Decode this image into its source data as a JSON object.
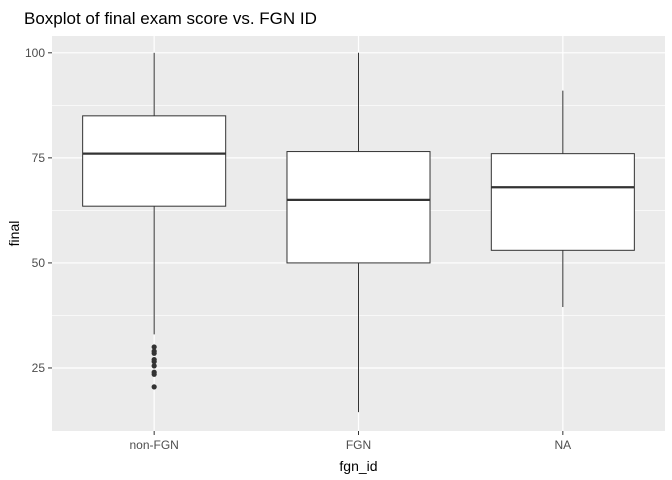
{
  "chart_data": {
    "type": "boxplot",
    "title": "Boxplot of final exam score vs. FGN ID",
    "xlabel": "fgn_id",
    "ylabel": "final",
    "ylim": [
      10,
      104
    ],
    "y_ticks": [
      25,
      50,
      75,
      100
    ],
    "grid": true,
    "legend": "none",
    "categories": [
      "non-FGN",
      "FGN",
      "NA"
    ],
    "boxes": [
      {
        "category": "non-FGN",
        "whisker_low": 33,
        "q1": 63.5,
        "median": 76,
        "q3": 85,
        "whisker_high": 100,
        "outliers": [
          20.5,
          23.5,
          24,
          25.5,
          26.5,
          27,
          28.5,
          29,
          30
        ]
      },
      {
        "category": "FGN",
        "whisker_low": 14.5,
        "q1": 50,
        "median": 65,
        "q3": 76.5,
        "whisker_high": 100,
        "outliers": []
      },
      {
        "category": "NA",
        "whisker_low": 39.5,
        "q1": 53,
        "median": 68,
        "q3": 76,
        "whisker_high": 91,
        "outliers": []
      }
    ],
    "colors": {
      "panel": "#ebebeb",
      "grid": "#ffffff",
      "box_fill": "#ffffff",
      "box_line": "#333333",
      "outlier": "#333333"
    }
  }
}
